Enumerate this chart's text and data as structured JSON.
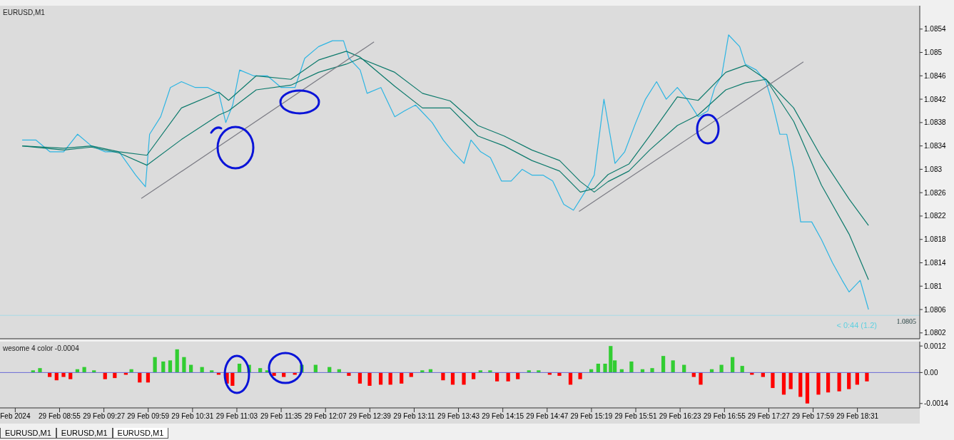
{
  "chart_data": [
    {
      "type": "line",
      "title": "EURUSD,M1",
      "xlim": [
        "2024-02-29T08:12",
        "2024-02-29T19:16"
      ],
      "ylim": [
        1.0801,
        1.0858
      ],
      "yticks": [
        1.0802,
        1.0806,
        1.081,
        1.0814,
        1.0818,
        1.0822,
        1.0826,
        1.083,
        1.0834,
        1.0838,
        1.0842,
        1.0846,
        1.085,
        1.0854
      ],
      "tick_labels": "y",
      "grid": false,
      "legend": false,
      "marker": "none",
      "x": [
        "2024-02-29T08:28",
        "2024-02-29T08:38",
        "2024-02-29T08:48",
        "2024-02-29T08:58",
        "2024-02-29T09:08",
        "2024-02-29T09:18",
        "2024-02-29T09:28",
        "2024-02-29T09:38",
        "2024-02-29T09:50",
        "2024-02-29T09:57",
        "2024-02-29T10:00",
        "2024-02-29T10:08",
        "2024-02-29T10:15",
        "2024-02-29T10:23",
        "2024-02-29T10:33",
        "2024-02-29T10:42",
        "2024-02-29T10:50",
        "2024-02-29T10:55",
        "2024-02-29T11:00",
        "2024-02-29T11:05",
        "2024-02-29T11:15",
        "2024-02-29T11:25",
        "2024-02-29T11:35",
        "2024-02-29T11:45",
        "2024-02-29T11:52",
        "2024-02-29T12:02",
        "2024-02-29T12:12",
        "2024-02-29T12:20",
        "2024-02-29T12:24",
        "2024-02-29T12:32",
        "2024-02-29T12:37",
        "2024-02-29T12:47",
        "2024-02-29T12:57",
        "2024-02-29T13:04",
        "2024-02-29T13:12",
        "2024-02-29T13:24",
        "2024-02-29T13:32",
        "2024-02-29T13:39",
        "2024-02-29T13:47",
        "2024-02-29T13:52",
        "2024-02-29T13:59",
        "2024-02-29T14:06",
        "2024-02-29T14:14",
        "2024-02-29T14:21",
        "2024-02-29T14:29",
        "2024-02-29T14:36",
        "2024-02-29T14:44",
        "2024-02-29T14:51",
        "2024-02-29T14:59",
        "2024-02-29T15:06",
        "2024-02-29T15:14",
        "2024-02-29T15:21",
        "2024-02-29T15:28",
        "2024-02-29T15:36",
        "2024-02-29T15:43",
        "2024-02-29T15:51",
        "2024-02-29T15:58",
        "2024-02-29T16:06",
        "2024-02-29T16:13",
        "2024-02-29T16:21",
        "2024-02-29T16:28",
        "2024-02-29T16:36",
        "2024-02-29T16:43",
        "2024-02-29T16:48",
        "2024-02-29T16:53",
        "2024-02-29T16:58",
        "2024-02-29T17:06",
        "2024-02-29T17:10",
        "2024-02-29T17:18",
        "2024-02-29T17:25",
        "2024-02-29T17:30",
        "2024-02-29T17:35",
        "2024-02-29T17:40",
        "2024-02-29T17:45",
        "2024-02-29T17:50",
        "2024-02-29T17:58",
        "2024-02-29T18:05",
        "2024-02-29T18:13",
        "2024-02-29T18:20",
        "2024-02-29T18:25",
        "2024-02-29T18:33",
        "2024-02-29T18:39"
      ],
      "series": [
        {
          "color": "#2db5e3",
          "values": [
            1.0835,
            1.0835,
            1.0833,
            1.0833,
            1.0836,
            1.0834,
            1.0833,
            1.0833,
            1.0829,
            1.0827,
            1.0836,
            1.0839,
            1.0844,
            1.0845,
            1.0844,
            1.0844,
            1.0843,
            1.0838,
            1.0841,
            1.0847,
            1.0846,
            1.0846,
            1.0844,
            1.0844,
            1.0849,
            1.0851,
            1.0852,
            1.0852,
            1.0849,
            1.0847,
            1.0843,
            1.0844,
            1.0839,
            1.084,
            1.0841,
            1.0838,
            1.0835,
            1.0833,
            1.0831,
            1.0835,
            1.0833,
            1.0832,
            1.0828,
            1.0828,
            1.083,
            1.0829,
            1.0829,
            1.0828,
            1.0824,
            1.0823,
            1.0826,
            1.0829,
            1.0842,
            1.0831,
            1.0833,
            1.0838,
            1.0842,
            1.0845,
            1.0842,
            1.0844,
            1.0842,
            1.0839,
            1.084,
            1.0844,
            1.0846,
            1.0853,
            1.0851,
            1.0848,
            1.0847,
            1.0845,
            1.0841,
            1.0836,
            1.0836,
            1.083,
            1.0821,
            1.0821,
            1.0818,
            1.0814,
            1.0811,
            1.0809,
            1.0811,
            1.0806
          ]
        },
        {
          "color": "#0d7a6c",
          "x": [
            "2024-02-29T08:28",
            "2024-02-29T08:58",
            "2024-02-29T09:18",
            "2024-02-29T09:38",
            "2024-02-29T09:58",
            "2024-02-29T10:23",
            "2024-02-29T10:50",
            "2024-02-29T10:57",
            "2024-02-29T11:17",
            "2024-02-29T11:42",
            "2024-02-29T12:02",
            "2024-02-29T12:22",
            "2024-02-29T12:32",
            "2024-02-29T12:57",
            "2024-02-29T13:17",
            "2024-02-29T13:37",
            "2024-02-29T13:57",
            "2024-02-29T14:16",
            "2024-02-29T14:36",
            "2024-02-29T14:56",
            "2024-02-29T15:11",
            "2024-02-29T15:21",
            "2024-02-29T15:31",
            "2024-02-29T15:46",
            "2024-02-29T16:01",
            "2024-02-29T16:21",
            "2024-02-29T16:36",
            "2024-02-29T16:56",
            "2024-02-29T17:10",
            "2024-02-29T17:25",
            "2024-02-29T17:45",
            "2024-02-29T18:05",
            "2024-02-29T18:25",
            "2024-02-29T18:39"
          ],
          "values": [
            1.0834,
            1.08336,
            1.0834,
            1.0833,
            1.08324,
            1.08405,
            1.08432,
            1.08418,
            1.0846,
            1.08454,
            1.08487,
            1.08502,
            1.08492,
            1.08442,
            1.08405,
            1.08405,
            1.08357,
            1.0834,
            1.08315,
            1.08297,
            1.08261,
            1.08267,
            1.08291,
            1.08309,
            1.08357,
            1.08424,
            1.08418,
            1.08466,
            1.08478,
            1.08454,
            1.08382,
            1.08273,
            1.08189,
            1.08111
          ]
        },
        {
          "color": "#0d7a6c",
          "x": [
            "2024-02-29T08:28",
            "2024-02-29T08:58",
            "2024-02-29T09:18",
            "2024-02-29T09:38",
            "2024-02-29T09:58",
            "2024-02-29T10:23",
            "2024-02-29T10:50",
            "2024-02-29T10:57",
            "2024-02-29T11:17",
            "2024-02-29T11:42",
            "2024-02-29T12:02",
            "2024-02-29T12:22",
            "2024-02-29T12:32",
            "2024-02-29T12:57",
            "2024-02-29T13:17",
            "2024-02-29T13:37",
            "2024-02-29T13:57",
            "2024-02-29T14:16",
            "2024-02-29T14:36",
            "2024-02-29T14:56",
            "2024-02-29T15:11",
            "2024-02-29T15:21",
            "2024-02-29T15:31",
            "2024-02-29T15:46",
            "2024-02-29T16:01",
            "2024-02-29T16:21",
            "2024-02-29T16:36",
            "2024-02-29T16:56",
            "2024-02-29T17:10",
            "2024-02-29T17:25",
            "2024-02-29T17:45",
            "2024-02-29T18:05",
            "2024-02-29T18:25",
            "2024-02-29T18:39"
          ],
          "values": [
            1.0834,
            1.08333,
            1.08338,
            1.08328,
            1.08307,
            1.08351,
            1.08393,
            1.084,
            1.08436,
            1.08444,
            1.08466,
            1.0848,
            1.0849,
            1.08466,
            1.0843,
            1.08417,
            1.08375,
            1.08357,
            1.08333,
            1.08315,
            1.08279,
            1.08261,
            1.08279,
            1.08297,
            1.08333,
            1.08375,
            1.08393,
            1.08436,
            1.08448,
            1.08454,
            1.08405,
            1.08321,
            1.08249,
            1.08204
          ]
        },
        {
          "color": "#7b7b84",
          "x": [
            "2024-02-29T09:54",
            "2024-02-29T12:42"
          ],
          "values": [
            1.0825,
            1.08518
          ]
        },
        {
          "color": "#7b7b84",
          "x": [
            "2024-02-29T15:10",
            "2024-02-29T17:52"
          ],
          "values": [
            1.08228,
            1.08484
          ]
        }
      ],
      "ref_lines": [
        {
          "axis": "y",
          "value": 1.0805,
          "label": "1.0805",
          "color": "#a8dce8"
        }
      ],
      "annotations": [
        "< 0:44 (1.2)"
      ]
    },
    {
      "type": "bar",
      "title": "wesome 4 color -0.0004",
      "xlim": [
        "2024-02-29T08:12",
        "2024-02-29T19:16"
      ],
      "ylim": [
        -0.0016,
        0.0014
      ],
      "yticks": [
        0.0012,
        {
          "value": 0,
          "label": "0.00"
        },
        -0.0014
      ],
      "grid": false,
      "legend": false,
      "xticks": [
        {
          "value": "2024-02-29T08:23",
          "label": "Feb 2024"
        },
        {
          "value": "2024-02-29T08:55",
          "label": "29 Feb 08:55"
        },
        {
          "value": "2024-02-29T09:27",
          "label": "29 Feb 09:27"
        },
        {
          "value": "2024-02-29T09:59",
          "label": "29 Feb 09:59"
        },
        {
          "value": "2024-02-29T10:31",
          "label": "29 Feb 10:31"
        },
        {
          "value": "2024-02-29T11:03",
          "label": "29 Feb 11:03"
        },
        {
          "value": "2024-02-29T11:35",
          "label": "29 Feb 11:35"
        },
        {
          "value": "2024-02-29T12:07",
          "label": "29 Feb 12:07"
        },
        {
          "value": "2024-02-29T12:39",
          "label": "29 Feb 12:39"
        },
        {
          "value": "2024-02-29T13:11",
          "label": "29 Feb 13:11"
        },
        {
          "value": "2024-02-29T13:43",
          "label": "29 Feb 13:43"
        },
        {
          "value": "2024-02-29T14:15",
          "label": "29 Feb 14:15"
        },
        {
          "value": "2024-02-29T14:47",
          "label": "29 Feb 14:47"
        },
        {
          "value": "2024-02-29T15:19",
          "label": "29 Feb 15:19"
        },
        {
          "value": "2024-02-29T15:51",
          "label": "29 Feb 15:51"
        },
        {
          "value": "2024-02-29T16:23",
          "label": "29 Feb 16:23"
        },
        {
          "value": "2024-02-29T16:55",
          "label": "29 Feb 16:55"
        },
        {
          "value": "2024-02-29T17:27",
          "label": "29 Feb 17:27"
        },
        {
          "value": "2024-02-29T17:59",
          "label": "29 Feb 17:59"
        },
        {
          "value": "2024-02-29T18:31",
          "label": "29 Feb 18:31"
        }
      ],
      "x": [
        "2024-02-29T08:36",
        "2024-02-29T08:41",
        "2024-02-29T08:48",
        "2024-02-29T08:53",
        "2024-02-29T08:58",
        "2024-02-29T09:03",
        "2024-02-29T09:08",
        "2024-02-29T09:13",
        "2024-02-29T09:20",
        "2024-02-29T09:28",
        "2024-02-29T09:35",
        "2024-02-29T09:43",
        "2024-02-29T09:47",
        "2024-02-29T09:53",
        "2024-02-29T09:59",
        "2024-02-29T10:04",
        "2024-02-29T10:10",
        "2024-02-29T10:15",
        "2024-02-29T10:20",
        "2024-02-29T10:25",
        "2024-02-29T10:30",
        "2024-02-29T10:38",
        "2024-02-29T10:45",
        "2024-02-29T10:50",
        "2024-02-29T10:56",
        "2024-02-29T11:00",
        "2024-02-29T11:05",
        "2024-02-29T11:12",
        "2024-02-29T11:20",
        "2024-02-29T11:25",
        "2024-02-29T11:30",
        "2024-02-29T11:37",
        "2024-02-29T11:45",
        "2024-02-29T11:50",
        "2024-02-29T12:00",
        "2024-02-29T12:10",
        "2024-02-29T12:17",
        "2024-02-29T12:24",
        "2024-02-29T12:32",
        "2024-02-29T12:39",
        "2024-02-29T12:47",
        "2024-02-29T12:54",
        "2024-02-29T13:02",
        "2024-02-29T13:09",
        "2024-02-29T13:17",
        "2024-02-29T13:23",
        "2024-02-29T13:32",
        "2024-02-29T13:39",
        "2024-02-29T13:47",
        "2024-02-29T13:54",
        "2024-02-29T13:59",
        "2024-02-29T14:06",
        "2024-02-29T14:11",
        "2024-02-29T14:19",
        "2024-02-29T14:26",
        "2024-02-29T14:34",
        "2024-02-29T14:41",
        "2024-02-29T14:49",
        "2024-02-29T14:56",
        "2024-02-29T15:04",
        "2024-02-29T15:11",
        "2024-02-29T15:19",
        "2024-02-29T15:24",
        "2024-02-29T15:29",
        "2024-02-29T15:33",
        "2024-02-29T15:36",
        "2024-02-29T15:41",
        "2024-02-29T15:48",
        "2024-02-29T15:56",
        "2024-02-29T16:03",
        "2024-02-29T16:11",
        "2024-02-29T16:18",
        "2024-02-29T16:26",
        "2024-02-29T16:33",
        "2024-02-29T16:38",
        "2024-02-29T16:46",
        "2024-02-29T16:53",
        "2024-02-29T17:01",
        "2024-02-29T17:08",
        "2024-02-29T17:15",
        "2024-02-29T17:23",
        "2024-02-29T17:30",
        "2024-02-29T17:38",
        "2024-02-29T17:43",
        "2024-02-29T17:50",
        "2024-02-29T17:55",
        "2024-02-29T18:03",
        "2024-02-29T18:10",
        "2024-02-29T18:18",
        "2024-02-29T18:25",
        "2024-02-29T18:31",
        "2024-02-29T18:38"
      ],
      "values": [
        0.0001,
        0.0002,
        -0.0002,
        -0.00035,
        -0.0002,
        -0.0003,
        0.00015,
        0.00025,
        0.0001,
        -0.0003,
        -0.00025,
        -0.0001,
        0.00015,
        -0.00045,
        -0.00045,
        0.0007,
        0.0005,
        0.00055,
        0.00105,
        0.0007,
        0.00035,
        0.00025,
        0.0001,
        -0.0001,
        -0.0005,
        -0.0006,
        0.0004,
        0.00035,
        0.0002,
        0.0001,
        -0.00015,
        -0.0002,
        -0.0001,
        0.00035,
        0.00035,
        0.00025,
        0.00015,
        -0.00015,
        -0.0005,
        -0.0006,
        -0.00055,
        -0.00055,
        -0.0005,
        -0.0002,
        0.0001,
        0.00015,
        -0.00035,
        -0.00055,
        -0.00055,
        -0.0003,
        0.0001,
        0.0001,
        -0.0004,
        -0.0004,
        -0.0003,
        0.0001,
        0.0001,
        -0.0001,
        -0.00015,
        -0.00055,
        -0.0003,
        0.00015,
        0.0004,
        0.0004,
        0.0012,
        0.00055,
        0.00015,
        0.0005,
        0.00015,
        0.0002,
        0.00075,
        0.00055,
        0.00035,
        -0.0002,
        -0.00055,
        0.00015,
        0.00035,
        0.0007,
        0.0003,
        -0.0001,
        -0.0002,
        -0.0007,
        -0.001,
        -0.00075,
        -0.0011,
        -0.0014,
        -0.001,
        -0.0009,
        -0.00085,
        -0.00075,
        -0.00055,
        -0.0004
      ],
      "colors": [
        "#32cd32",
        "#32cd32",
        "#ff0000",
        "#ff0000",
        "#ff0000",
        "#ff0000",
        "#32cd32",
        "#32cd32",
        "#32cd32",
        "#ff0000",
        "#ff0000",
        "#ff0000",
        "#32cd32",
        "#ff0000",
        "#ff0000",
        "#32cd32",
        "#32cd32",
        "#32cd32",
        "#32cd32",
        "#32cd32",
        "#32cd32",
        "#32cd32",
        "#32cd32",
        "#ff0000",
        "#ff0000",
        "#ff0000",
        "#32cd32",
        "#32cd32",
        "#32cd32",
        "#32cd32",
        "#ff0000",
        "#ff0000",
        "#ff0000",
        "#32cd32",
        "#32cd32",
        "#32cd32",
        "#32cd32",
        "#ff0000",
        "#ff0000",
        "#ff0000",
        "#ff0000",
        "#ff0000",
        "#ff0000",
        "#ff0000",
        "#32cd32",
        "#32cd32",
        "#ff0000",
        "#ff0000",
        "#ff0000",
        "#ff0000",
        "#32cd32",
        "#32cd32",
        "#ff0000",
        "#ff0000",
        "#ff0000",
        "#32cd32",
        "#32cd32",
        "#ff0000",
        "#ff0000",
        "#ff0000",
        "#ff0000",
        "#32cd32",
        "#32cd32",
        "#32cd32",
        "#32cd32",
        "#32cd32",
        "#32cd32",
        "#32cd32",
        "#32cd32",
        "#32cd32",
        "#32cd32",
        "#32cd32",
        "#32cd32",
        "#ff0000",
        "#ff0000",
        "#32cd32",
        "#32cd32",
        "#32cd32",
        "#32cd32",
        "#ff0000",
        "#ff0000",
        "#ff0000",
        "#ff0000",
        "#ff0000",
        "#ff0000",
        "#ff0000",
        "#ff0000",
        "#ff0000",
        "#ff0000",
        "#ff0000",
        "#ff0000",
        "#ff0000"
      ],
      "ref_lines": [
        {
          "axis": "y",
          "value": 0,
          "color": "#6b6bd6"
        }
      ],
      "annotations": [
        "EURUSD,M1",
        "EURUSD,M1",
        "EURUSD,M1"
      ]
    }
  ]
}
